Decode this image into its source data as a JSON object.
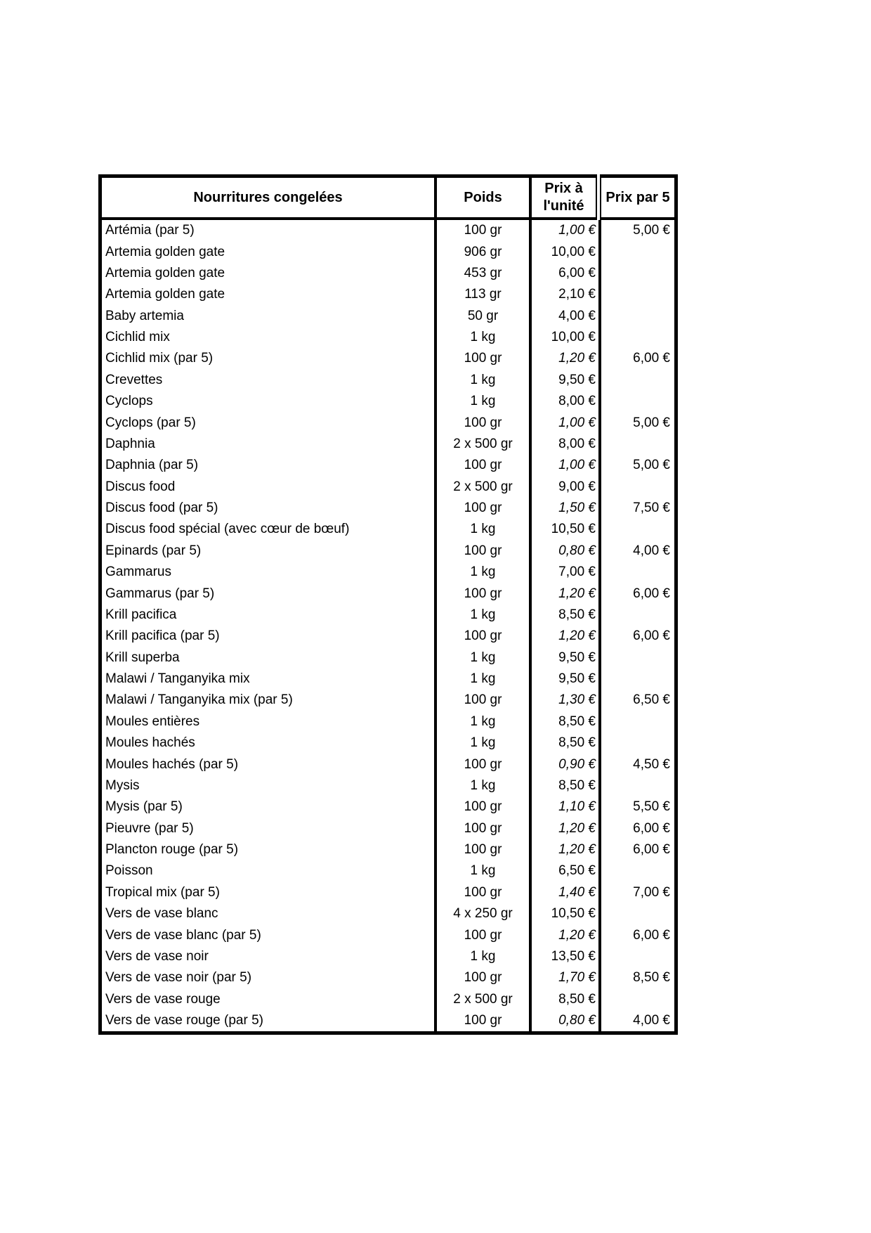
{
  "table": {
    "border_color": "#000000",
    "background": "#ffffff",
    "text_color": "#000000",
    "header": {
      "products": "Nourritures congelées",
      "weight": "Poids",
      "unit_price": "Prix à l'unité",
      "price_per_5": "Prix par 5"
    },
    "rows": [
      {
        "name": "Artémia (par 5)",
        "weight": "100 gr",
        "unit_price": "1,00 €",
        "unit_price_italic": true,
        "price_per_5": "5,00 €"
      },
      {
        "name": "Artemia golden gate",
        "weight": "906 gr",
        "unit_price": "10,00 €",
        "unit_price_italic": false,
        "price_per_5": ""
      },
      {
        "name": "Artemia golden gate",
        "weight": "453 gr",
        "unit_price": "6,00 €",
        "unit_price_italic": false,
        "price_per_5": ""
      },
      {
        "name": "Artemia golden gate",
        "weight": "113 gr",
        "unit_price": "2,10 €",
        "unit_price_italic": false,
        "price_per_5": ""
      },
      {
        "name": "Baby artemia",
        "weight": "50 gr",
        "unit_price": "4,00 €",
        "unit_price_italic": false,
        "price_per_5": ""
      },
      {
        "name": "Cichlid mix",
        "weight": "1 kg",
        "unit_price": "10,00 €",
        "unit_price_italic": false,
        "price_per_5": ""
      },
      {
        "name": "Cichlid mix (par 5)",
        "weight": "100 gr",
        "unit_price": "1,20 €",
        "unit_price_italic": true,
        "price_per_5": "6,00 €"
      },
      {
        "name": "Crevettes",
        "weight": "1 kg",
        "unit_price": "9,50 €",
        "unit_price_italic": false,
        "price_per_5": ""
      },
      {
        "name": "Cyclops",
        "weight": "1 kg",
        "unit_price": "8,00 €",
        "unit_price_italic": false,
        "price_per_5": ""
      },
      {
        "name": "Cyclops (par 5)",
        "weight": "100 gr",
        "unit_price": "1,00 €",
        "unit_price_italic": true,
        "price_per_5": "5,00 €"
      },
      {
        "name": "Daphnia",
        "weight": "2 x 500 gr",
        "unit_price": "8,00 €",
        "unit_price_italic": false,
        "price_per_5": ""
      },
      {
        "name": "Daphnia (par 5)",
        "weight": "100 gr",
        "unit_price": "1,00 €",
        "unit_price_italic": true,
        "price_per_5": "5,00 €"
      },
      {
        "name": "Discus food",
        "weight": "2 x 500 gr",
        "unit_price": "9,00 €",
        "unit_price_italic": false,
        "price_per_5": ""
      },
      {
        "name": "Discus food (par 5)",
        "weight": "100 gr",
        "unit_price": "1,50 €",
        "unit_price_italic": true,
        "price_per_5": "7,50 €"
      },
      {
        "name": "Discus food spécial (avec cœur de bœuf)",
        "weight": "1 kg",
        "unit_price": "10,50 €",
        "unit_price_italic": false,
        "price_per_5": ""
      },
      {
        "name": "Epinards (par 5)",
        "weight": "100 gr",
        "unit_price": "0,80 €",
        "unit_price_italic": true,
        "price_per_5": "4,00 €"
      },
      {
        "name": "Gammarus",
        "weight": "1 kg",
        "unit_price": "7,00 €",
        "unit_price_italic": false,
        "price_per_5": ""
      },
      {
        "name": "Gammarus (par 5)",
        "weight": "100 gr",
        "unit_price": "1,20 €",
        "unit_price_italic": true,
        "price_per_5": "6,00 €"
      },
      {
        "name": "Krill pacifica",
        "weight": "1 kg",
        "unit_price": "8,50 €",
        "unit_price_italic": false,
        "price_per_5": ""
      },
      {
        "name": "Krill pacifica (par 5)",
        "weight": "100 gr",
        "unit_price": "1,20 €",
        "unit_price_italic": true,
        "price_per_5": "6,00 €"
      },
      {
        "name": "Krill superba",
        "weight": "1 kg",
        "unit_price": "9,50 €",
        "unit_price_italic": false,
        "price_per_5": ""
      },
      {
        "name": "Malawi / Tanganyika mix",
        "weight": "1 kg",
        "unit_price": "9,50 €",
        "unit_price_italic": false,
        "price_per_5": ""
      },
      {
        "name": "Malawi / Tanganyika mix (par 5)",
        "weight": "100 gr",
        "unit_price": "1,30 €",
        "unit_price_italic": true,
        "price_per_5": "6,50 €"
      },
      {
        "name": "Moules entières",
        "weight": "1 kg",
        "unit_price": "8,50 €",
        "unit_price_italic": false,
        "price_per_5": ""
      },
      {
        "name": "Moules hachés",
        "weight": "1 kg",
        "unit_price": "8,50 €",
        "unit_price_italic": false,
        "price_per_5": ""
      },
      {
        "name": "Moules hachés (par 5)",
        "weight": "100 gr",
        "unit_price": "0,90 €",
        "unit_price_italic": true,
        "price_per_5": "4,50 €"
      },
      {
        "name": "Mysis",
        "weight": "1 kg",
        "unit_price": "8,50 €",
        "unit_price_italic": false,
        "price_per_5": ""
      },
      {
        "name": "Mysis (par 5)",
        "weight": "100 gr",
        "unit_price": "1,10 €",
        "unit_price_italic": true,
        "price_per_5": "5,50 €"
      },
      {
        "name": "Pieuvre (par 5)",
        "weight": "100 gr",
        "unit_price": "1,20 €",
        "unit_price_italic": true,
        "price_per_5": "6,00 €"
      },
      {
        "name": "Plancton rouge (par 5)",
        "weight": "100 gr",
        "unit_price": "1,20 €",
        "unit_price_italic": true,
        "price_per_5": "6,00 €"
      },
      {
        "name": "Poisson",
        "weight": "1 kg",
        "unit_price": "6,50 €",
        "unit_price_italic": false,
        "price_per_5": ""
      },
      {
        "name": "Tropical mix (par 5)",
        "weight": "100 gr",
        "unit_price": "1,40 €",
        "unit_price_italic": true,
        "price_per_5": "7,00 €"
      },
      {
        "name": "Vers de vase blanc",
        "weight": "4 x 250 gr",
        "unit_price": "10,50 €",
        "unit_price_italic": false,
        "price_per_5": ""
      },
      {
        "name": "Vers de vase blanc (par 5)",
        "weight": "100 gr",
        "unit_price": "1,20 €",
        "unit_price_italic": true,
        "price_per_5": "6,00 €"
      },
      {
        "name": "Vers de vase noir",
        "weight": "1 kg",
        "unit_price": "13,50 €",
        "unit_price_italic": false,
        "price_per_5": ""
      },
      {
        "name": "Vers de vase noir (par 5)",
        "weight": "100 gr",
        "unit_price": "1,70 €",
        "unit_price_italic": true,
        "price_per_5": "8,50 €"
      },
      {
        "name": "Vers de vase rouge",
        "weight": "2 x 500 gr",
        "unit_price": "8,50 €",
        "unit_price_italic": false,
        "price_per_5": ""
      },
      {
        "name": "Vers de vase rouge (par 5)",
        "weight": "100 gr",
        "unit_price": "0,80 €",
        "unit_price_italic": true,
        "price_per_5": "4,00 €"
      }
    ]
  }
}
